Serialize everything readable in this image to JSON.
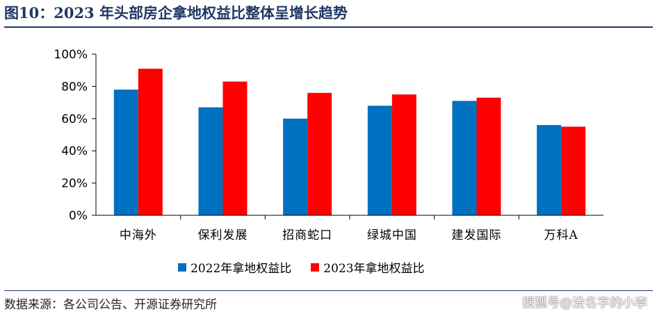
{
  "title": "图10：2023 年头部房企拿地权益比整体呈增长趋势",
  "source": "数据来源：各公司公告、开源证券研究所",
  "watermark": "搜狐号@没名字的小李",
  "chart_data": {
    "type": "bar",
    "categories": [
      "中海外",
      "保利发展",
      "招商蛇口",
      "绿城中国",
      "建发国际",
      "万科A"
    ],
    "series": [
      {
        "name": "2022年拿地权益比",
        "color": "#0070c0",
        "values": [
          78,
          67,
          60,
          68,
          71,
          56
        ]
      },
      {
        "name": "2023年拿地权益比",
        "color": "#ff0000",
        "values": [
          91,
          83,
          76,
          75,
          73,
          55
        ]
      }
    ],
    "yticks": [
      "0%",
      "20%",
      "40%",
      "60%",
      "80%",
      "100%"
    ],
    "ylim": [
      0,
      100
    ],
    "legend_position": "bottom",
    "grid": false
  }
}
